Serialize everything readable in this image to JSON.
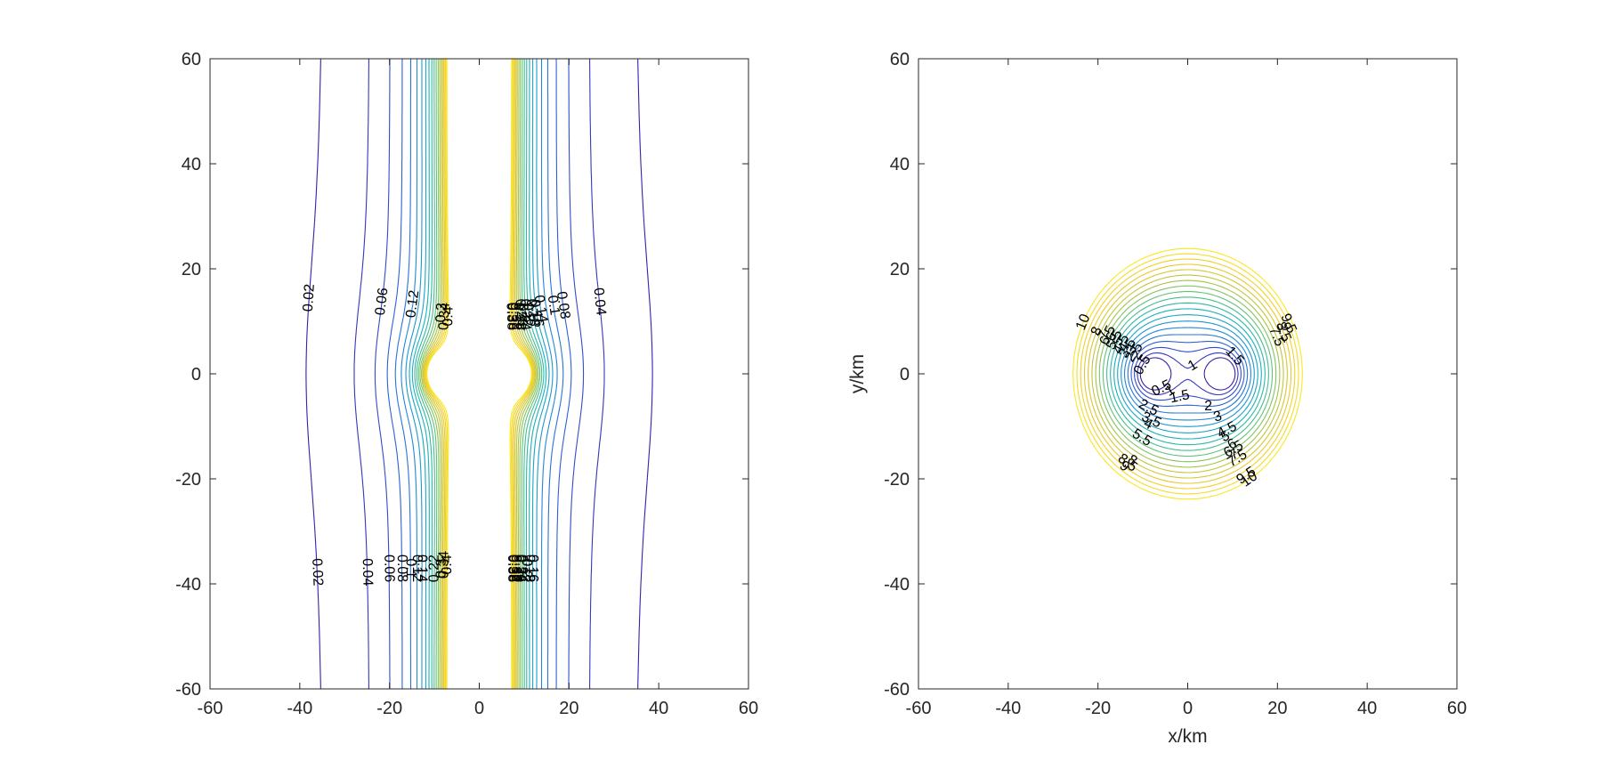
{
  "chart_data": [
    {
      "type": "contour",
      "xlabel": "",
      "ylabel": "",
      "xlim": [
        -60,
        60
      ],
      "ylim": [
        -60,
        60
      ],
      "xticks": [
        "-60",
        "-40",
        "-20",
        "0",
        "20",
        "40",
        "60"
      ],
      "yticks": [
        "-60",
        "-40",
        "-20",
        "0",
        "20",
        "40",
        "60"
      ],
      "grid": false,
      "sources": [
        [
          -8,
          0
        ],
        [
          8,
          0
        ]
      ],
      "colormap": [
        "#3b1fa8",
        "#2f5bd8",
        "#1f8fd6",
        "#18b3b8",
        "#5cc27a",
        "#b8c53a",
        "#f0c82a",
        "#f9e721"
      ],
      "levels": [
        0.02,
        0.04,
        0.06,
        0.08,
        0.1,
        0.12,
        0.14,
        0.16,
        0.18,
        0.2,
        0.22,
        0.24,
        0.26,
        0.28,
        0.3,
        0.32,
        0.34,
        0.36,
        0.38,
        0.4
      ],
      "level_labels": [
        "0.02",
        "0.04",
        "0.06",
        "0.08",
        "0.1",
        "0.12",
        "0.14",
        "0.16",
        "0.18",
        "0.2",
        "0.22",
        "0.24",
        "0.26",
        "0.28",
        "0.3",
        "0.32",
        "0.34",
        "0.36",
        "0.38",
        "0.4"
      ]
    },
    {
      "type": "contour",
      "xlabel": "x/km",
      "ylabel": "y/km",
      "xlim": [
        -60,
        60
      ],
      "ylim": [
        -60,
        60
      ],
      "xticks": [
        "-60",
        "-40",
        "-20",
        "0",
        "20",
        "40",
        "60"
      ],
      "yticks": [
        "-60",
        "-40",
        "-20",
        "0",
        "20",
        "40",
        "60"
      ],
      "grid": false,
      "sources": [
        [
          -8,
          0
        ],
        [
          8,
          0
        ]
      ],
      "colormap": [
        "#3b1fa8",
        "#2f5bd8",
        "#1f8fd6",
        "#18b3b8",
        "#5cc27a",
        "#b8c53a",
        "#f0c82a",
        "#f9e721"
      ],
      "levels": [
        0.5,
        1,
        1.5,
        2,
        2.5,
        3,
        3.5,
        4,
        4.5,
        5,
        5.5,
        6,
        6.5,
        7,
        7.5,
        8,
        8.5,
        9,
        9.5,
        10
      ],
      "level_labels": [
        "0.5",
        "1",
        "1.5",
        "2",
        "2.5",
        "3",
        "3.5",
        "4",
        "4.5",
        "5",
        "5.5",
        "6",
        "6.5",
        "7",
        "7.5",
        "8",
        "8.5",
        "9",
        "9.5",
        "10"
      ]
    }
  ]
}
